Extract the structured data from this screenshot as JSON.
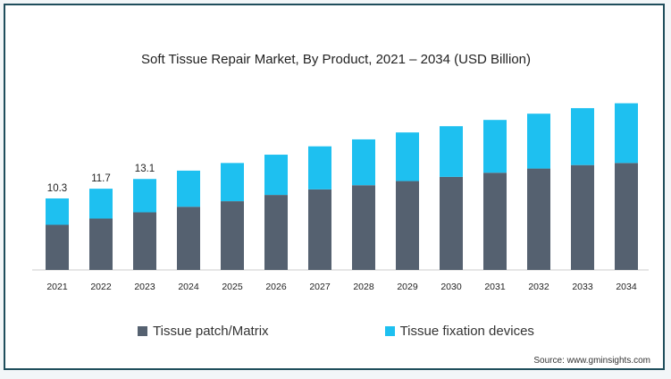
{
  "chart_data": {
    "type": "bar",
    "stacked": true,
    "title": "Soft Tissue Repair Market, By Product, 2021 – 2034 (USD Billion)",
    "categories": [
      "2021",
      "2022",
      "2023",
      "2024",
      "2025",
      "2026",
      "2027",
      "2028",
      "2029",
      "2030",
      "2031",
      "2032",
      "2033",
      "2034"
    ],
    "series": [
      {
        "name": "Tissue patch/Matrix",
        "color": "#556170",
        "values": [
          6.5,
          7.4,
          8.3,
          9.1,
          9.9,
          10.8,
          11.6,
          12.2,
          12.8,
          13.4,
          14.0,
          14.6,
          15.1,
          15.4
        ]
      },
      {
        "name": "Tissue fixation devices",
        "color": "#1ec0f0",
        "values": [
          3.8,
          4.3,
          4.8,
          5.2,
          5.5,
          5.8,
          6.2,
          6.6,
          7.0,
          7.3,
          7.6,
          7.9,
          8.2,
          8.6
        ]
      }
    ],
    "data_labels": {
      "2021": "10.3",
      "2022": "11.7",
      "2023": "13.1"
    },
    "ylim": [
      0,
      26
    ],
    "xlabel": "",
    "ylabel": "",
    "legend_position": "bottom",
    "grid": false
  },
  "source": "Source: www.gminsights.com"
}
